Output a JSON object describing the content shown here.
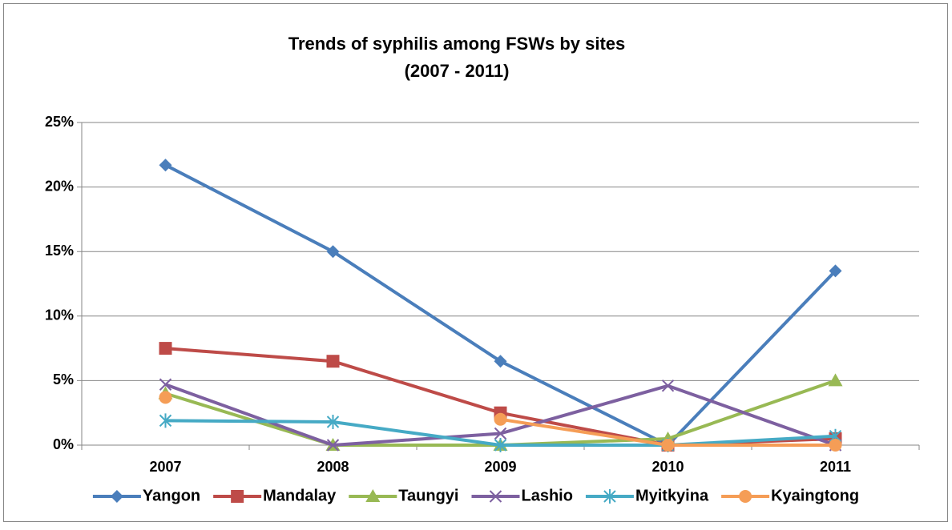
{
  "chart_data": {
    "type": "line",
    "title": "Trends of syphilis among FSWs by sites",
    "subtitle": "(2007 - 2011)",
    "categories": [
      "2007",
      "2008",
      "2009",
      "2010",
      "2011"
    ],
    "series": [
      {
        "name": "Yangon",
        "color": "#4a7ebb",
        "marker": "diamond",
        "values": [
          21.7,
          15.0,
          6.5,
          0,
          13.5
        ]
      },
      {
        "name": "Mandalay",
        "color": "#be4b48",
        "marker": "square",
        "values": [
          7.5,
          6.5,
          2.5,
          0,
          0.5
        ]
      },
      {
        "name": "Taungyi",
        "color": "#98b954",
        "marker": "triangle",
        "values": [
          4.0,
          0,
          0,
          0.5,
          5.0
        ]
      },
      {
        "name": "Lashio",
        "color": "#7d60a0",
        "marker": "x",
        "values": [
          4.7,
          0,
          0.9,
          4.6,
          0
        ]
      },
      {
        "name": "Myitkyina",
        "color": "#46aac5",
        "marker": "star",
        "values": [
          1.9,
          1.8,
          0,
          0,
          0.7
        ]
      },
      {
        "name": "Kyaingtong",
        "color": "#f59d56",
        "marker": "circle",
        "values": [
          3.7,
          null,
          2.0,
          0,
          0
        ]
      }
    ],
    "ylim": [
      0,
      25
    ],
    "yticks": [
      {
        "value": 0,
        "label": "0%"
      },
      {
        "value": 5,
        "label": "5%"
      },
      {
        "value": 10,
        "label": "10%"
      },
      {
        "value": 15,
        "label": "15%"
      },
      {
        "value": 20,
        "label": "20%"
      },
      {
        "value": 25,
        "label": "25%"
      }
    ],
    "grid": true,
    "legend": "bottom"
  }
}
